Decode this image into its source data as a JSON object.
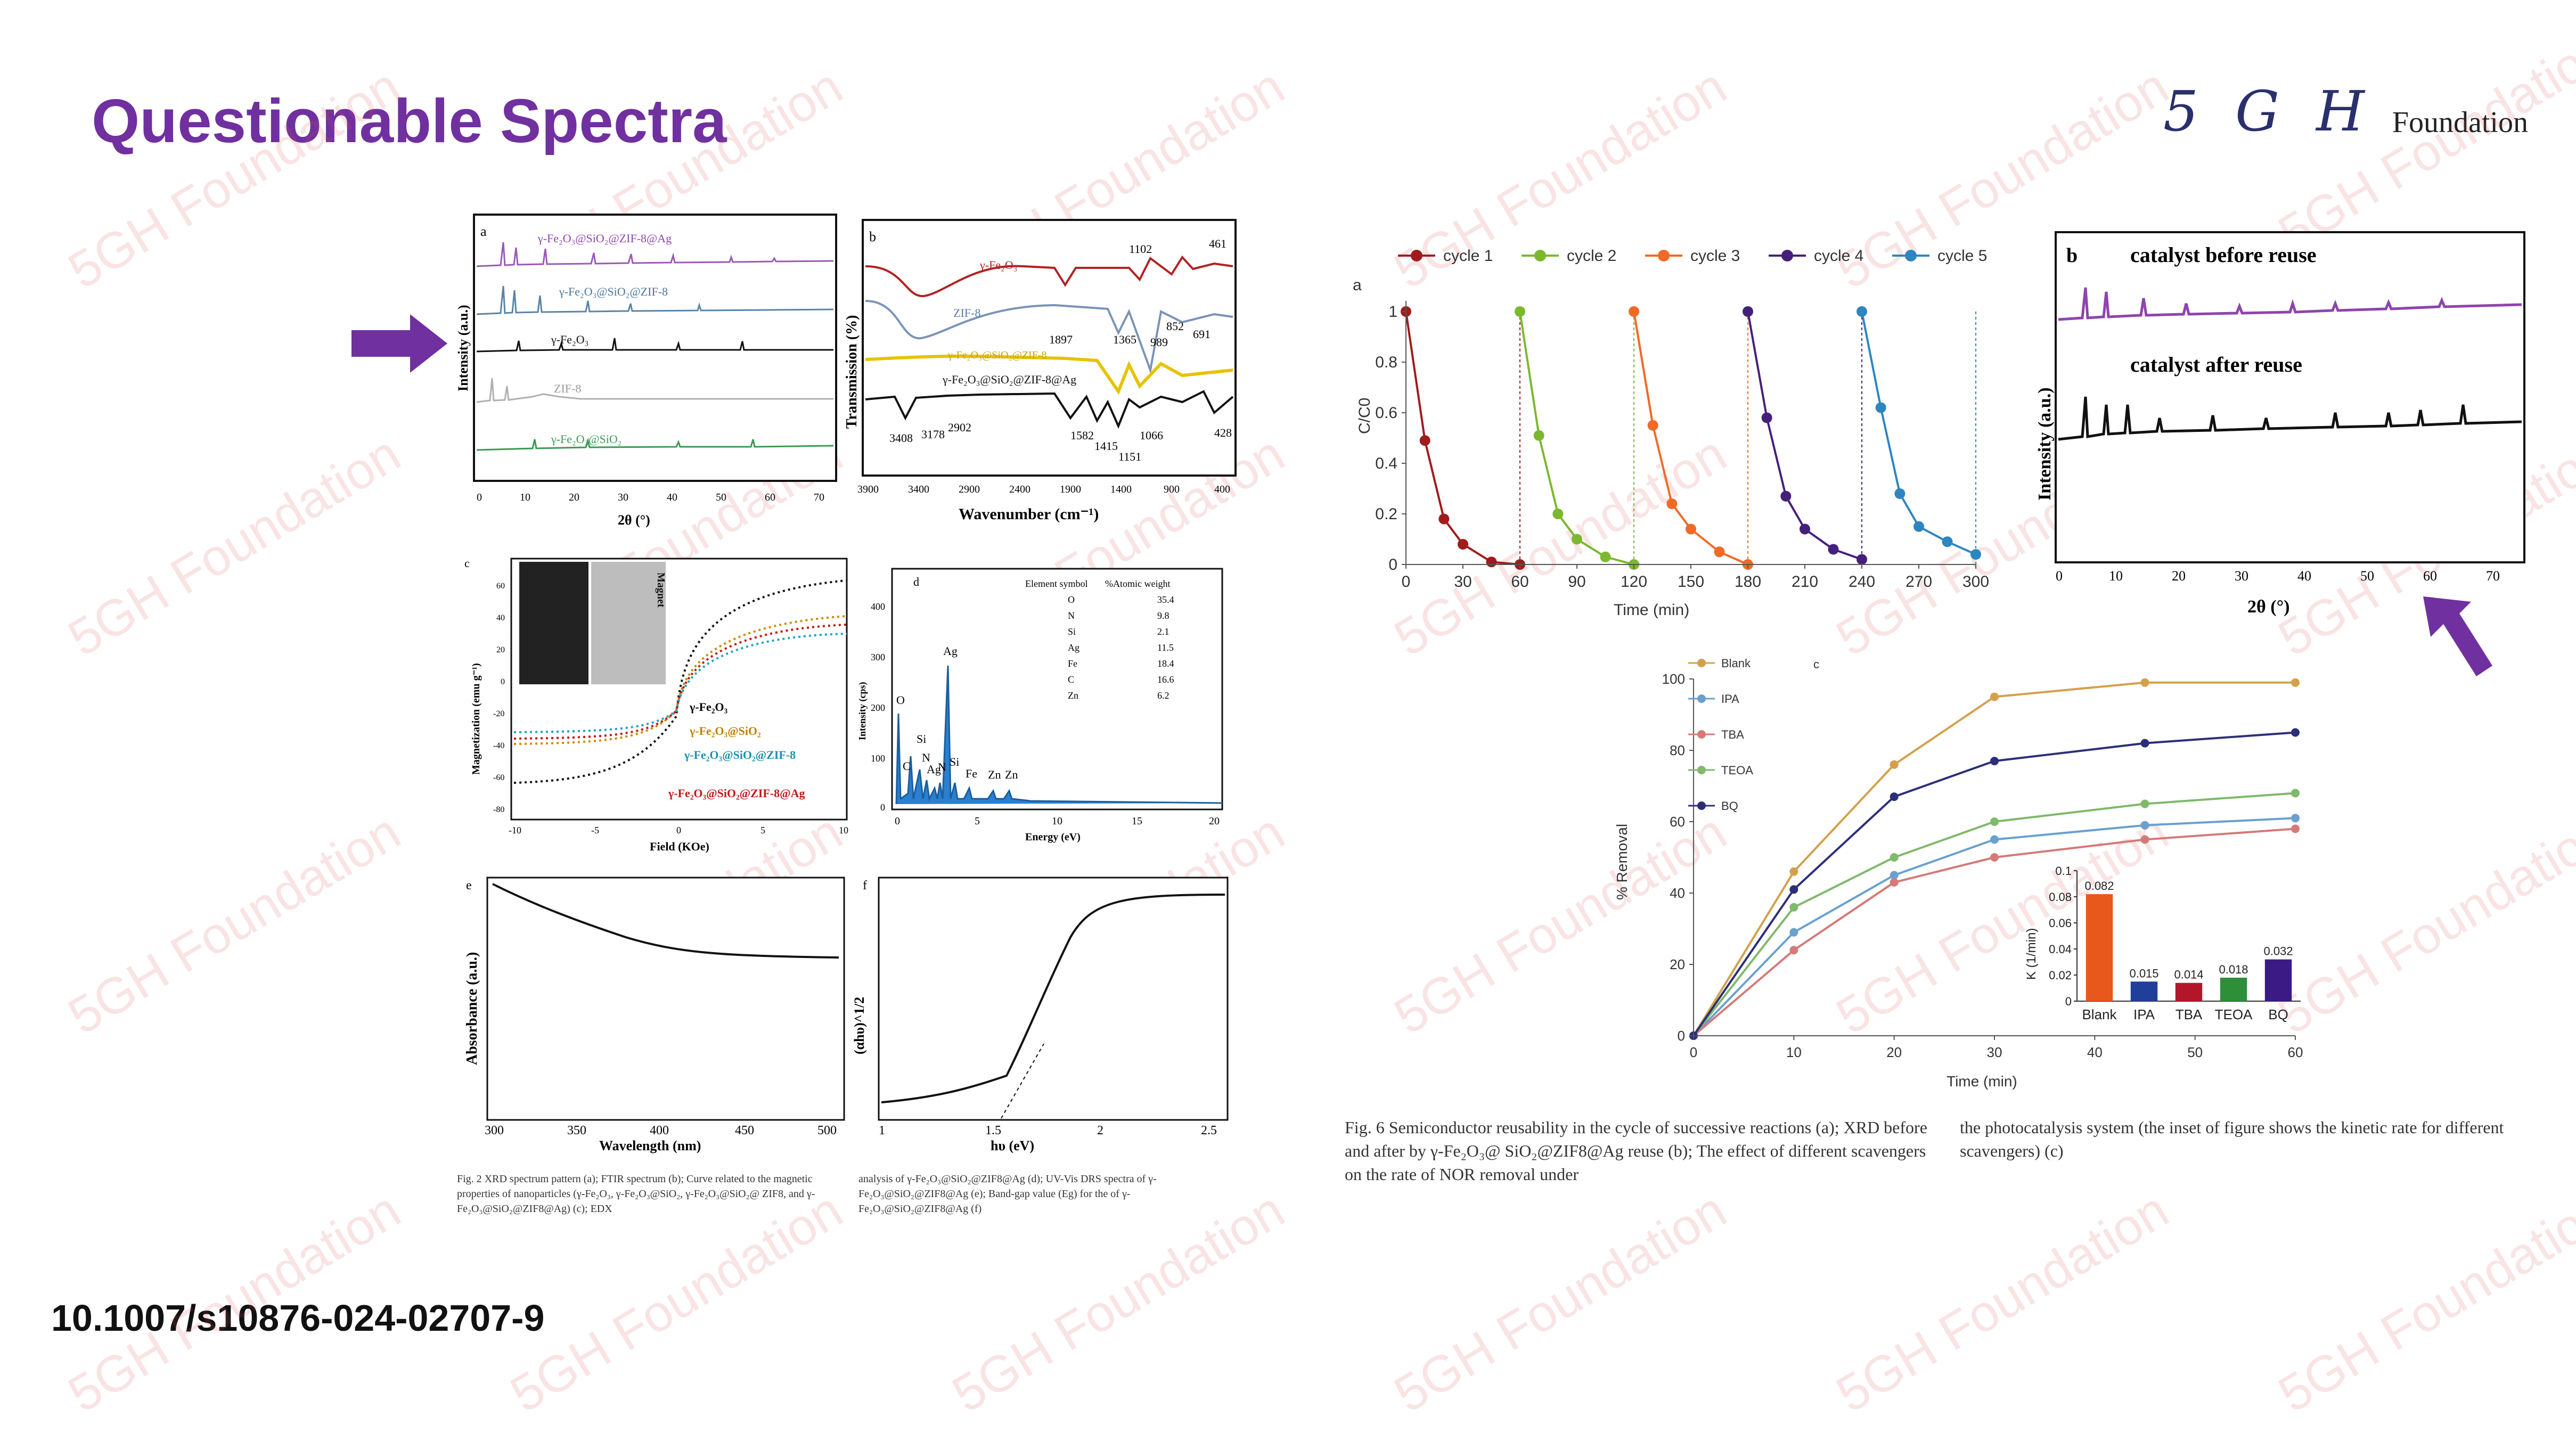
{
  "slide": {
    "title": "Questionable Spectra",
    "doi": "10.1007/s10876-024-02707-9",
    "brand_mark": "5 G H",
    "brand_text": "Foundation",
    "watermark": "5GH Foundation",
    "accent_color": "#7030a0"
  },
  "fig2": {
    "panel_a": {
      "label": "a",
      "ylabel": "Intensity (a.u.)",
      "xlabel": "2θ (°)",
      "xticks": [
        "0",
        "10",
        "20",
        "30",
        "40",
        "50",
        "60",
        "70"
      ],
      "traces": [
        "γ-Fe₂O₃@SiO₂@ZIF-8@Ag",
        "γ-Fe₂O₃@SiO₂@ZIF-8",
        "γ-Fe₂O₃",
        "ZIF-8",
        "γ-Fe₂O₃@SiO₂"
      ]
    },
    "panel_b": {
      "label": "b",
      "ylabel": "Transmission (%)",
      "xlabel": "Wavenumber (cm⁻¹)",
      "xticks": [
        "3900",
        "3400",
        "2900",
        "2400",
        "1900",
        "1400",
        "900",
        "400"
      ],
      "traces": [
        "γ-Fe₂O₃",
        "ZIF-8",
        "γ-Fe₂O₃@SiO₂@ZIF-8",
        "γ-Fe₂O₃@SiO₂@ZIF-8@Ag"
      ],
      "peaks": [
        "1102",
        "461",
        "852",
        "691",
        "1897",
        "1365",
        "989",
        "3408",
        "3178",
        "2902",
        "1582",
        "1415",
        "1066",
        "428",
        "1151"
      ]
    },
    "panel_c": {
      "label": "c",
      "ylabel": "Magnetization (emu g⁻¹)",
      "xlabel": "Field (KOe)",
      "xticks": [
        "-10",
        "-5",
        "0",
        "5",
        "10"
      ],
      "yticks": [
        "60",
        "40",
        "20",
        "0",
        "-20",
        "-40",
        "-60",
        "-80"
      ],
      "inset_label": "Magnet",
      "traces": [
        "γ-Fe₂O₃",
        "γ-Fe₂O₃@SiO₂",
        "γ-Fe₂O₃@SiO₂@ZIF-8",
        "γ-Fe₂O₃@SiO₂@ZIF-8@Ag"
      ]
    },
    "panel_d": {
      "label": "d",
      "ylabel": "Intensity (cps)",
      "xlabel": "Energy (eV)",
      "xticks": [
        "0",
        "5",
        "10",
        "15",
        "20"
      ],
      "yticks": [
        "400",
        "300",
        "200",
        "100",
        "0"
      ],
      "table_headers": [
        "Element symbol",
        "%Atomic weight"
      ],
      "table_rows": [
        [
          "O",
          "35.4"
        ],
        [
          "N",
          "9.8"
        ],
        [
          "Si",
          "2.1"
        ],
        [
          "Ag",
          "11.5"
        ],
        [
          "Fe",
          "18.4"
        ],
        [
          "C",
          "16.6"
        ],
        [
          "Zn",
          "6.2"
        ]
      ],
      "peak_labels": [
        "O",
        "Si",
        "C",
        "N",
        "Ag",
        "N",
        "Si",
        "Ag",
        "Fe",
        "Zn",
        "Zn"
      ]
    },
    "panel_e": {
      "label": "e",
      "ylabel": "Absorbance (a.u.)",
      "xlabel": "Wavelength (nm)",
      "xticks": [
        "300",
        "350",
        "400",
        "450",
        "500"
      ]
    },
    "panel_f": {
      "label": "f",
      "ylabel": "(αhυ)^1/2",
      "xlabel": "hυ (eV)",
      "xticks": [
        "1",
        "1.5",
        "2",
        "2.5"
      ]
    },
    "caption_left": "Fig. 2 XRD spectrum pattern (a); FTIR spectrum (b); Curve related to the magnetic properties of nanoparticles (γ-Fe₂O₃, γ-Fe₂O₃@SiO₂, γ-Fe₂O₃@SiO₂@ ZIF8, and γ-Fe₂O₃@SiO₂@ZIF8@Ag) (c); EDX",
    "caption_right": "analysis of γ-Fe₂O₃@SiO₂@ZIF8@Ag (d); UV-Vis DRS spectra of γ-Fe₂O₃@SiO₂@ZIF8@Ag (e); Band-gap value (Eg) for the of γ-Fe₂O₃@SiO₂@ZIF8@Ag (f)"
  },
  "fig6": {
    "panel_b": {
      "label": "b",
      "ylabel": "Intensity (a.u.)",
      "xlabel": "2θ (°)",
      "xticks": [
        "0",
        "10",
        "20",
        "30",
        "40",
        "50",
        "60",
        "70"
      ],
      "label_before": "catalyst before reuse",
      "label_after": "catalyst after reuse"
    },
    "caption_left": "Fig. 6 Semiconductor reusability in the cycle of successive reactions (a); XRD before and after by γ-Fe₂O₃@ SiO₂@ZIF8@Ag reuse (b); The effect of different scavengers on the rate of NOR removal under",
    "caption_right": "the photocatalysis system (the inset of figure shows the kinetic rate for different scavengers) (c)"
  },
  "chart_data": [
    {
      "type": "line",
      "panel": "a",
      "xlabel": "Time (min)",
      "ylabel": "C/C0",
      "xlim": [
        0,
        300
      ],
      "ylim": [
        0,
        1.0
      ],
      "xticks": [
        0,
        30,
        60,
        90,
        120,
        150,
        180,
        210,
        240,
        270,
        300
      ],
      "yticks": [
        0,
        0.2,
        0.4,
        0.6,
        0.8,
        1
      ],
      "series": [
        {
          "name": "cycle 1",
          "color": "#a01c1c",
          "x": [
            0,
            10,
            20,
            30,
            45,
            60
          ],
          "y": [
            1.0,
            0.49,
            0.18,
            0.08,
            0.01,
            0.0
          ]
        },
        {
          "name": "cycle 2",
          "color": "#7cb82f",
          "x": [
            60,
            70,
            80,
            90,
            105,
            120
          ],
          "y": [
            1.0,
            0.51,
            0.2,
            0.1,
            0.03,
            0.0
          ]
        },
        {
          "name": "cycle 3",
          "color": "#f06a26",
          "x": [
            120,
            130,
            140,
            150,
            165,
            180
          ],
          "y": [
            1.0,
            0.55,
            0.24,
            0.14,
            0.05,
            0.0
          ]
        },
        {
          "name": "cycle 4",
          "color": "#44207a",
          "x": [
            180,
            190,
            200,
            210,
            225,
            240
          ],
          "y": [
            1.0,
            0.58,
            0.27,
            0.14,
            0.06,
            0.02
          ]
        },
        {
          "name": "cycle 5",
          "color": "#2e86c1",
          "x": [
            240,
            250,
            260,
            270,
            285,
            300
          ],
          "y": [
            1.0,
            0.62,
            0.28,
            0.15,
            0.09,
            0.04
          ]
        }
      ]
    },
    {
      "type": "line",
      "panel": "c",
      "xlabel": "Time (min)",
      "ylabel": "% Removal",
      "xlim": [
        0,
        60
      ],
      "ylim": [
        0,
        100
      ],
      "xticks": [
        0,
        10,
        20,
        30,
        40,
        50,
        60
      ],
      "yticks": [
        0,
        20,
        40,
        60,
        80,
        100
      ],
      "series": [
        {
          "name": "Blank",
          "color": "#d4a04a",
          "x": [
            0,
            10,
            20,
            30,
            45,
            60
          ],
          "y": [
            0,
            46,
            76,
            95,
            99,
            99
          ]
        },
        {
          "name": "IPA",
          "color": "#6aa0d0",
          "x": [
            0,
            10,
            20,
            30,
            45,
            60
          ],
          "y": [
            0,
            29,
            45,
            55,
            59,
            61
          ]
        },
        {
          "name": "TBA",
          "color": "#d47a78",
          "x": [
            0,
            10,
            20,
            30,
            45,
            60
          ],
          "y": [
            0,
            24,
            43,
            50,
            55,
            58
          ]
        },
        {
          "name": "TEOA",
          "color": "#7fb96a",
          "x": [
            0,
            10,
            20,
            30,
            45,
            60
          ],
          "y": [
            0,
            36,
            50,
            60,
            65,
            68
          ]
        },
        {
          "name": "BQ",
          "color": "#2b2f78",
          "x": [
            0,
            10,
            20,
            30,
            45,
            60
          ],
          "y": [
            0,
            41,
            67,
            77,
            82,
            85
          ]
        }
      ]
    },
    {
      "type": "bar",
      "panel": "c-inset",
      "ylabel": "K (1/min)",
      "ylim": [
        0,
        0.1
      ],
      "yticks": [
        0,
        0.02,
        0.04,
        0.06,
        0.08,
        0.1
      ],
      "categories": [
        "Blank",
        "IPA",
        "TBA",
        "TEOA",
        "BQ"
      ],
      "values": [
        0.082,
        0.015,
        0.014,
        0.018,
        0.032
      ],
      "colors": [
        "#e8581c",
        "#1f3f9a",
        "#b3162b",
        "#2d8f3a",
        "#3b1a86"
      ]
    }
  ]
}
